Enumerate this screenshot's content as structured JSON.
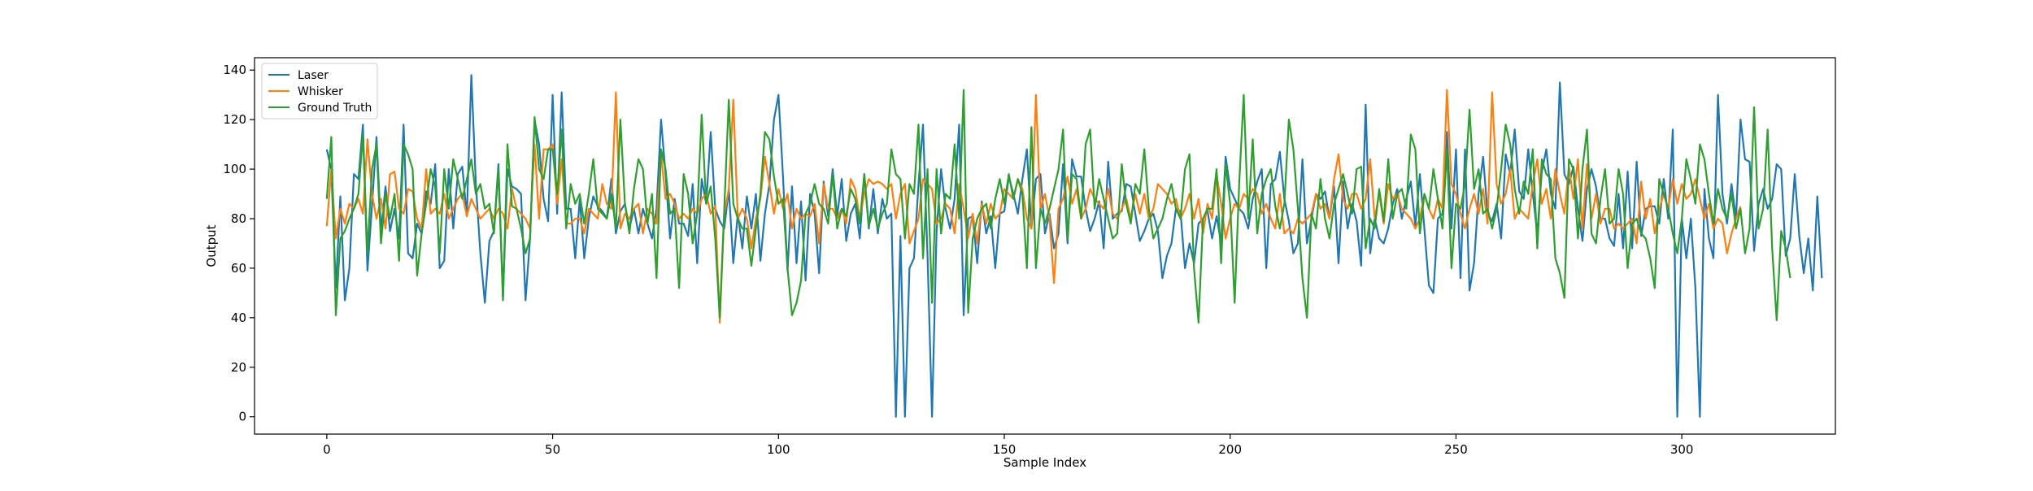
{
  "chart_data": {
    "type": "line",
    "title": "",
    "xlabel": "Sample Index",
    "ylabel": "Output",
    "xlim": [
      -16,
      334
    ],
    "ylim": [
      -7,
      145
    ],
    "xticks": [
      0,
      50,
      100,
      150,
      200,
      250,
      300
    ],
    "yticks": [
      0,
      20,
      40,
      60,
      80,
      100,
      120,
      140
    ],
    "grid": false,
    "legend_position": "top-left",
    "series": [
      {
        "name": "Laser",
        "color": "#1f77b4",
        "values": [
          108,
          100,
          52,
          89,
          47,
          60,
          98,
          96,
          118,
          59,
          85,
          113,
          75,
          93,
          75,
          84,
          72,
          118,
          66,
          64,
          78,
          74,
          91,
          86,
          102,
          60,
          63,
          100,
          76,
          98,
          101,
          81,
          138,
          94,
          66,
          46,
          71,
          75,
          102,
          48,
          100,
          93,
          92,
          90,
          47,
          72,
          120,
          110,
          88,
          79,
          130,
          82,
          131,
          84,
          84,
          64,
          88,
          64,
          80,
          89,
          85,
          83,
          80,
          96,
          74,
          83,
          86,
          76,
          84,
          74,
          84,
          78,
          72,
          84,
          120,
          98,
          72,
          88,
          78,
          78,
          73,
          94,
          62,
          96,
          86,
          115,
          84,
          79,
          76,
          92,
          62,
          82,
          68,
          89,
          76,
          90,
          63,
          82,
          94,
          120,
          130,
          97,
          59,
          93,
          62,
          87,
          55,
          90,
          82,
          58,
          95,
          81,
          100,
          81,
          96,
          71,
          82,
          86,
          72,
          98,
          76,
          92,
          74,
          88,
          80,
          82,
          0,
          73,
          0,
          60,
          64,
          94,
          118,
          65,
          0,
          75,
          100,
          84,
          76,
          88,
          118,
          41,
          80,
          81,
          62,
          87,
          74,
          81,
          60,
          82,
          83,
          97,
          90,
          82,
          96,
          108,
          76,
          96,
          98,
          74,
          82,
          68,
          74,
          102,
          70,
          104,
          97,
          97,
          84,
          75,
          80,
          87,
          68,
          103,
          80,
          82,
          83,
          94,
          93,
          82,
          71,
          75,
          80,
          82,
          75,
          56,
          65,
          70,
          84,
          83,
          60,
          70,
          62,
          78,
          80,
          83,
          72,
          81,
          70,
          105,
          92,
          88,
          84,
          82,
          76,
          88,
          95,
          100,
          60,
          94,
          96,
          107,
          88,
          79,
          66,
          70,
          104,
          70,
          80,
          90,
          88,
          91,
          80,
          93,
          62,
          95,
          76,
          86,
          79,
          61,
          126,
          66,
          80,
          72,
          70,
          76,
          86,
          92,
          80,
          88,
          95,
          77,
          98,
          76,
          53,
          50,
          80,
          82,
          115,
          76,
          108,
          56,
          108,
          51,
          62,
          90,
          105,
          82,
          79,
          86,
          72,
          106,
          98,
          116,
          91,
          88,
          108,
          90,
          74,
          99,
          108,
          90,
          84,
          135,
          98,
          94,
          101,
          84,
          71,
          92,
          100,
          93,
          80,
          80,
          72,
          69,
          90,
          68,
          99,
          68,
          103,
          73,
          84,
          85,
          85,
          78,
          96,
          80,
          116,
          0,
          80,
          64,
          80,
          52,
          0,
          92,
          72,
          64,
          130,
          90,
          78,
          94,
          80,
          120,
          104,
          103,
          67,
          86,
          92,
          84,
          88,
          102,
          100,
          65,
          72,
          98,
          73,
          58,
          72,
          51,
          89,
          56
        ]
      },
      {
        "name": "Whisker",
        "color": "#ff7f0e",
        "values": [
          77,
          100,
          72,
          84,
          78,
          86,
          84,
          88,
          82,
          112,
          90,
          80,
          88,
          76,
          98,
          99,
          84,
          82,
          92,
          91,
          80,
          76,
          100,
          82,
          84,
          82,
          90,
          80,
          84,
          88,
          90,
          81,
          88,
          84,
          80,
          82,
          84,
          80,
          84,
          82,
          76,
          92,
          84,
          82,
          80,
          76,
          110,
          80,
          108,
          108,
          110,
          86,
          104,
          78,
          78,
          80,
          80,
          74,
          84,
          82,
          80,
          94,
          86,
          84,
          131,
          76,
          82,
          80,
          84,
          86,
          74,
          84,
          82,
          78,
          106,
          88,
          90,
          86,
          80,
          82,
          80,
          84,
          82,
          88,
          90,
          82,
          85,
          38,
          82,
          92,
          128,
          80,
          84,
          80,
          68,
          80,
          88,
          105,
          94,
          82,
          92,
          84,
          90,
          76,
          84,
          80,
          82,
          81,
          86,
          70,
          94,
          84,
          84,
          80,
          84,
          78,
          96,
          92,
          80,
          90,
          96,
          94,
          95,
          94,
          92,
          94,
          80,
          90,
          94,
          70,
          75,
          80,
          96,
          94,
          92,
          78,
          80,
          86,
          84,
          74,
          94,
          84,
          72,
          82,
          70,
          86,
          78,
          86,
          80,
          82,
          92,
          90,
          88,
          96,
          92,
          80,
          76,
          130,
          84,
          90,
          80,
          54,
          84,
          88,
          97,
          86,
          92,
          80,
          84,
          92,
          88,
          86,
          84,
          92,
          82,
          80,
          84,
          88,
          80,
          90,
          82,
          90,
          80,
          84,
          94,
          92,
          90,
          86,
          88,
          80,
          84,
          90,
          80,
          88,
          74,
          86,
          80,
          98,
          86,
          72,
          80,
          86,
          84,
          90,
          88,
          92,
          90,
          82,
          86,
          80,
          76,
          90,
          74,
          76,
          74,
          80,
          78,
          80,
          82,
          90,
          84,
          86,
          80,
          96,
          106,
          88,
          84,
          90,
          90,
          84,
          88,
          104,
          80,
          90,
          78,
          94,
          88,
          90,
          84,
          82,
          80,
          76,
          80,
          90,
          84,
          80,
          88,
          84,
          132,
          94,
          90,
          82,
          76,
          84,
          90,
          82,
          92,
          78,
          131,
          94,
          86,
          90,
          100,
          80,
          84,
          82,
          80,
          94,
          104,
          86,
          92,
          80,
          100,
          90,
          82,
          101,
          88,
          104,
          76,
          102,
          80,
          90,
          78,
          84,
          84,
          76,
          78,
          76,
          78,
          80,
          70,
          95,
          80,
          88,
          74,
          84,
          90,
          84,
          96,
          86,
          94,
          88,
          90,
          96,
          88,
          80,
          86,
          76,
          80,
          78,
          66,
          74,
          80,
          85
        ]
      },
      {
        "name": "Ground Truth",
        "color": "#2ca02c",
        "values": [
          88,
          113,
          41,
          72,
          75,
          80,
          84,
          90,
          114,
          66,
          100,
          110,
          70,
          90,
          80,
          90,
          63,
          110,
          106,
          100,
          57,
          74,
          86,
          100,
          93,
          66,
          100,
          84,
          104,
          96,
          88,
          96,
          104,
          90,
          94,
          84,
          86,
          74,
          100,
          47,
          110,
          85,
          84,
          76,
          66,
          72,
          121,
          100,
          96,
          108,
          108,
          90,
          116,
          76,
          94,
          86,
          90,
          78,
          90,
          104,
          84,
          82,
          80,
          90,
          76,
          120,
          86,
          74,
          92,
          104,
          100,
          78,
          90,
          56,
          108,
          100,
          82,
          84,
          52,
          98,
          90,
          70,
          82,
          122,
          86,
          93,
          72,
          40,
          84,
          128,
          86,
          80,
          76,
          76,
          61,
          76,
          90,
          115,
          112,
          97,
          86,
          88,
          60,
          41,
          46,
          55,
          82,
          86,
          94,
          86,
          84,
          78,
          98,
          76,
          84,
          81,
          92,
          88,
          78,
          98,
          77,
          84,
          76,
          82,
          86,
          108,
          98,
          96,
          72,
          94,
          90,
          118,
          64,
          100,
          46,
          100,
          74,
          90,
          88,
          110,
          80,
          132,
          42,
          72,
          80,
          84,
          86,
          76,
          88,
          96,
          86,
          98,
          88,
          96,
          90,
          60,
          117,
          60,
          84,
          78,
          84,
          92,
          100,
          116,
          72,
          98,
          96,
          80,
          110,
          116,
          84,
          96,
          88,
          80,
          72,
          74,
          102,
          86,
          78,
          94,
          90,
          108,
          84,
          72,
          76,
          80,
          88,
          94,
          84,
          80,
          100,
          106,
          60,
          38,
          80,
          84,
          84,
          100,
          62,
          102,
          86,
          46,
          94,
          130,
          80,
          112,
          74,
          90,
          96,
          100,
          85,
          76,
          86,
          120,
          108,
          84,
          56,
          40,
          82,
          76,
          96,
          80,
          72,
          86,
          92,
          98,
          90,
          82,
          100,
          101,
          68,
          80,
          76,
          92,
          79,
          104,
          80,
          90,
          92,
          84,
          114,
          108,
          74,
          90,
          84,
          100,
          88,
          76,
          108,
          60,
          86,
          84,
          94,
          124,
          92,
          100,
          82,
          84,
          76,
          84,
          100,
          118,
          110,
          92,
          82,
          95,
          90,
          108,
          68,
          104,
          98,
          96,
          64,
          58,
          48,
          104,
          100,
          72,
          100,
          116,
          74,
          70,
          88,
          100,
          78,
          80,
          100,
          90,
          60,
          78,
          80,
          74,
          72,
          64,
          52,
          96,
          90,
          84,
          74,
          66,
          80,
          104,
          96,
          86,
          110,
          104,
          90,
          78,
          92,
          84,
          80,
          90,
          76,
          84,
          66,
          76,
          125,
          76,
          84,
          116,
          68,
          39,
          75,
          68,
          56
        ]
      }
    ]
  }
}
